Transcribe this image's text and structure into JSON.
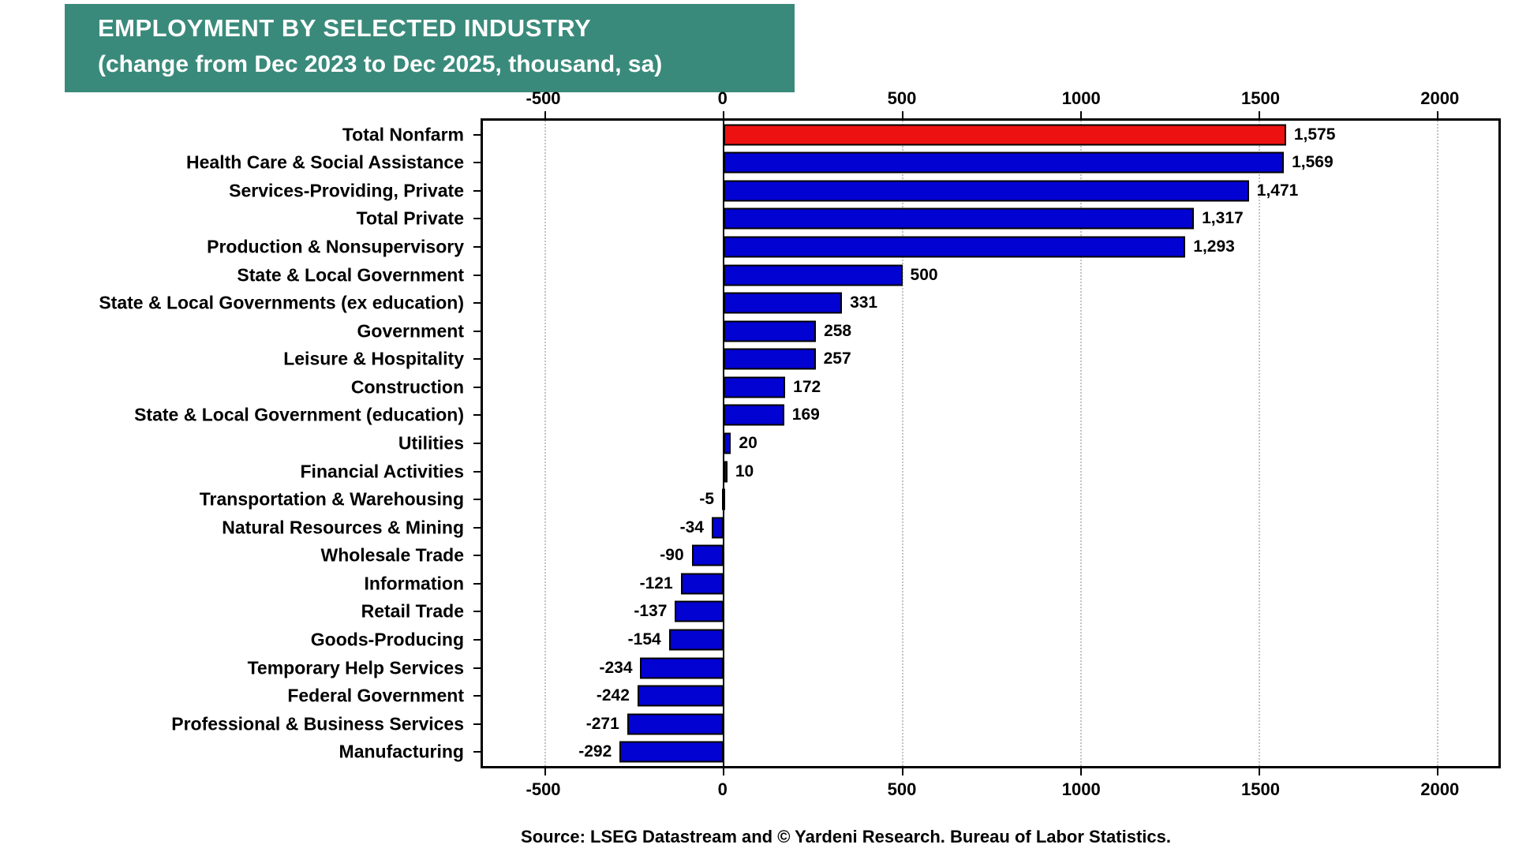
{
  "title": {
    "line1": "EMPLOYMENT BY SELECTED INDUSTRY",
    "line2": "(change from Dec 2023 to Dec 2025, thousand, sa)"
  },
  "source": "Source: LSEG Datastream and © Yardeni Research. Bureau of Labor Statistics.",
  "colors": {
    "title_bg": "#3A8A7B",
    "bar_positive": "#0202D2",
    "bar_highlight": "#EE1111",
    "bar_border": "#000000",
    "grid": "#C3C3C3",
    "zero_line": "#000000"
  },
  "chart_data": {
    "type": "bar",
    "orientation": "horizontal",
    "title": "EMPLOYMENT BY SELECTED INDUSTRY (change from Dec 2023 to Dec 2025, thousand, sa)",
    "xlabel": "",
    "ylabel": "",
    "categories": [
      "Total Nonfarm",
      "Health Care & Social Assistance",
      "Services-Providing, Private",
      "Total Private",
      "Production & Nonsupervisory",
      "State & Local Government",
      "State & Local Governments (ex education)",
      "Government",
      "Leisure & Hospitality",
      "Construction",
      "State & Local Government (education)",
      "Utilities",
      "Financial Activities",
      "Transportation & Warehousing",
      "Natural Resources & Mining",
      "Wholesale Trade",
      "Information",
      "Retail Trade",
      "Goods-Producing",
      "Temporary Help Services",
      "Federal Government",
      "Professional & Business Services",
      "Manufacturing"
    ],
    "values": [
      1575,
      1569,
      1471,
      1317,
      1293,
      500,
      331,
      258,
      257,
      172,
      169,
      20,
      10,
      -5,
      -34,
      -90,
      -121,
      -137,
      -154,
      -234,
      -242,
      -271,
      -292
    ],
    "value_labels": [
      "1,575",
      "1,569",
      "1,471",
      "1,317",
      "1,293",
      "500",
      "331",
      "258",
      "257",
      "172",
      "169",
      "20",
      "10",
      "-5",
      "-34",
      "-90",
      "-121",
      "-137",
      "-154",
      "-234",
      "-242",
      "-271",
      "-292"
    ],
    "highlight_index": 0,
    "x_ticks": [
      -500,
      0,
      500,
      1000,
      1500,
      2000
    ],
    "x_tick_labels": [
      "-500",
      "0",
      "500",
      "1000",
      "1500",
      "2000"
    ],
    "xlim": [
      -675,
      2170
    ],
    "grid": "dotted-vertical",
    "zero_line": true,
    "legend": "none"
  }
}
